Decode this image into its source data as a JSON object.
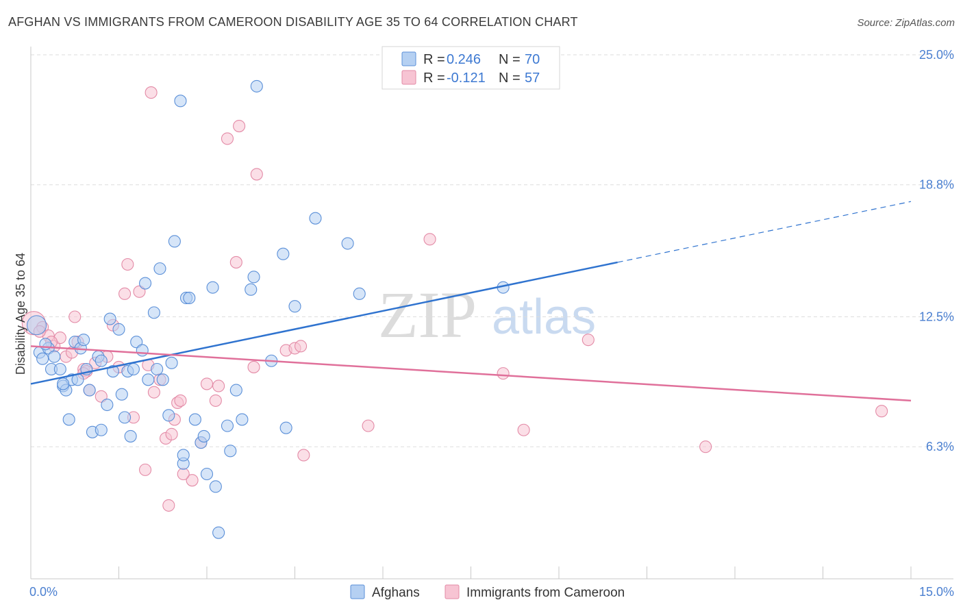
{
  "header": {
    "title": "AFGHAN VS IMMIGRANTS FROM CAMEROON DISABILITY AGE 35 TO 64 CORRELATION CHART",
    "source": "Source: ZipAtlas.com"
  },
  "watermark": {
    "part1": "ZIP",
    "part2": "atlas"
  },
  "legend": {
    "series1": {
      "r_label": "R = ",
      "r_value": "0.246",
      "n_label": "N = ",
      "n_value": "70"
    },
    "series2": {
      "r_label": "R = ",
      "r_value": "-0.121",
      "n_label": "N = ",
      "n_value": "57"
    }
  },
  "bottom_legend": {
    "series1": "Afghans",
    "series2": "Immigrants from Cameroon"
  },
  "colors": {
    "series1_fill": "#b5d0f2",
    "series1_stroke": "#5a8fd8",
    "series1_line": "#2f73cf",
    "series2_fill": "#f7c4d3",
    "series2_stroke": "#e38aa6",
    "series2_line": "#e0709a",
    "tick_text": "#4a7fd0",
    "grid": "#dddddd"
  },
  "chart_data": {
    "type": "scatter",
    "title": "AFGHAN VS IMMIGRANTS FROM CAMEROON DISABILITY AGE 35 TO 64 CORRELATION CHART",
    "xlabel": "",
    "ylabel": "Disability Age 35 to 64",
    "xlim": [
      0,
      15
    ],
    "ylim": [
      0,
      25
    ],
    "x_tick_labels": [
      "0.0%",
      "15.0%"
    ],
    "y_ticks": [
      6.3,
      12.5,
      18.8,
      25.0
    ],
    "y_tick_labels": [
      "6.3%",
      "12.5%",
      "18.8%",
      "25.0%"
    ],
    "grid": true,
    "legend_position": "top-center",
    "series": [
      {
        "name": "Afghans",
        "trend": {
          "x": [
            0,
            10.0
          ],
          "y": [
            9.3,
            15.1
          ],
          "dashed_to": [
            15.0,
            18.0
          ]
        },
        "points": [
          [
            0.1,
            12.1
          ],
          [
            0.15,
            10.8
          ],
          [
            0.2,
            10.5
          ],
          [
            0.3,
            11.0
          ],
          [
            0.35,
            10.0
          ],
          [
            0.4,
            10.6
          ],
          [
            0.5,
            10.0
          ],
          [
            0.55,
            9.2
          ],
          [
            0.6,
            9.0
          ],
          [
            0.65,
            7.6
          ],
          [
            0.7,
            9.5
          ],
          [
            0.75,
            11.3
          ],
          [
            0.8,
            9.5
          ],
          [
            0.85,
            11.0
          ],
          [
            0.9,
            11.4
          ],
          [
            0.95,
            10.0
          ],
          [
            1.0,
            9.0
          ],
          [
            1.05,
            7.0
          ],
          [
            1.15,
            10.6
          ],
          [
            1.2,
            7.1
          ],
          [
            1.3,
            8.3
          ],
          [
            1.35,
            12.4
          ],
          [
            1.4,
            9.9
          ],
          [
            1.5,
            11.9
          ],
          [
            1.55,
            8.8
          ],
          [
            1.6,
            7.7
          ],
          [
            1.65,
            9.9
          ],
          [
            1.7,
            6.8
          ],
          [
            1.75,
            10.0
          ],
          [
            1.8,
            11.3
          ],
          [
            1.9,
            10.9
          ],
          [
            1.95,
            14.1
          ],
          [
            2.0,
            9.5
          ],
          [
            2.1,
            12.7
          ],
          [
            2.15,
            10.0
          ],
          [
            2.2,
            14.8
          ],
          [
            2.25,
            9.5
          ],
          [
            2.35,
            7.8
          ],
          [
            2.4,
            10.3
          ],
          [
            2.45,
            16.1
          ],
          [
            2.55,
            22.8
          ],
          [
            2.6,
            5.5
          ],
          [
            2.6,
            5.9
          ],
          [
            2.65,
            13.4
          ],
          [
            2.7,
            13.4
          ],
          [
            2.8,
            7.6
          ],
          [
            2.9,
            6.5
          ],
          [
            2.95,
            6.8
          ],
          [
            3.0,
            5.0
          ],
          [
            3.1,
            13.9
          ],
          [
            3.15,
            4.4
          ],
          [
            3.2,
            2.2
          ],
          [
            3.35,
            7.3
          ],
          [
            3.4,
            6.1
          ],
          [
            3.5,
            9.0
          ],
          [
            3.6,
            7.6
          ],
          [
            3.75,
            13.8
          ],
          [
            3.8,
            14.4
          ],
          [
            3.85,
            23.5
          ],
          [
            4.1,
            10.4
          ],
          [
            4.3,
            15.5
          ],
          [
            4.35,
            7.2
          ],
          [
            4.5,
            13.0
          ],
          [
            4.85,
            17.2
          ],
          [
            5.4,
            16.0
          ],
          [
            5.6,
            13.6
          ],
          [
            8.05,
            13.9
          ],
          [
            0.55,
            9.3
          ],
          [
            1.2,
            10.4
          ],
          [
            0.25,
            11.2
          ]
        ]
      },
      {
        "name": "Immigrants from Cameroon",
        "trend": {
          "x": [
            0,
            15.0
          ],
          "y": [
            11.1,
            8.5
          ]
        },
        "points": [
          [
            0.05,
            12.2
          ],
          [
            0.2,
            12.0
          ],
          [
            0.3,
            11.6
          ],
          [
            0.4,
            11.1
          ],
          [
            0.5,
            11.5
          ],
          [
            0.6,
            10.6
          ],
          [
            0.7,
            10.8
          ],
          [
            0.75,
            12.5
          ],
          [
            0.8,
            11.3
          ],
          [
            0.9,
            10.0
          ],
          [
            0.95,
            9.9
          ],
          [
            1.0,
            9.0
          ],
          [
            1.1,
            10.3
          ],
          [
            1.2,
            8.7
          ],
          [
            1.3,
            10.6
          ],
          [
            1.4,
            12.1
          ],
          [
            1.5,
            10.1
          ],
          [
            1.6,
            13.6
          ],
          [
            1.65,
            15.0
          ],
          [
            1.75,
            7.7
          ],
          [
            1.85,
            13.7
          ],
          [
            1.95,
            5.2
          ],
          [
            2.0,
            10.2
          ],
          [
            2.05,
            23.2
          ],
          [
            2.1,
            8.9
          ],
          [
            2.2,
            9.5
          ],
          [
            2.3,
            6.7
          ],
          [
            2.35,
            3.5
          ],
          [
            2.4,
            6.9
          ],
          [
            2.45,
            7.6
          ],
          [
            2.5,
            8.4
          ],
          [
            2.55,
            8.5
          ],
          [
            2.75,
            4.7
          ],
          [
            2.9,
            6.5
          ],
          [
            3.0,
            9.3
          ],
          [
            3.15,
            8.5
          ],
          [
            3.2,
            9.2
          ],
          [
            3.35,
            21.0
          ],
          [
            3.5,
            15.1
          ],
          [
            3.55,
            21.6
          ],
          [
            3.8,
            10.1
          ],
          [
            3.85,
            19.3
          ],
          [
            4.35,
            10.9
          ],
          [
            4.5,
            11.0
          ],
          [
            4.6,
            11.1
          ],
          [
            4.65,
            5.9
          ],
          [
            5.75,
            7.3
          ],
          [
            6.8,
            16.2
          ],
          [
            8.05,
            9.8
          ],
          [
            8.4,
            7.1
          ],
          [
            9.5,
            11.4
          ],
          [
            11.5,
            6.3
          ],
          [
            14.5,
            8.0
          ],
          [
            0.15,
            11.8
          ],
          [
            0.35,
            11.3
          ],
          [
            0.9,
            9.8
          ],
          [
            2.6,
            5.0
          ]
        ]
      }
    ]
  }
}
